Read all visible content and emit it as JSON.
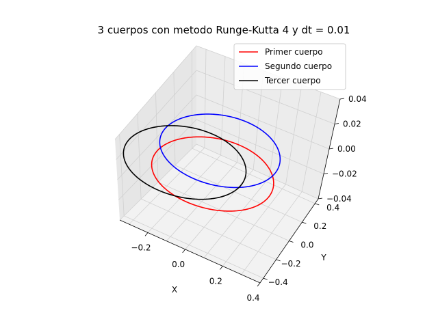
{
  "chart_data": {
    "type": "line",
    "projection": "3d",
    "title": "3 cuerpos con metodo Runge-Kutta 4 y dt = 0.01",
    "xlabel": "X",
    "ylabel": "Y",
    "zlabel": "",
    "xlim": [
      -0.35,
      0.4
    ],
    "ylim": [
      -0.45,
      0.45
    ],
    "zlim": [
      -0.04,
      0.04
    ],
    "x_ticks": [
      "−0.2",
      "0.0",
      "0.2",
      "0.4"
    ],
    "y_ticks": [
      "−0.4",
      "−0.2",
      "0.0",
      "0.2",
      "0.4"
    ],
    "z_ticks": [
      "−0.04",
      "−0.02",
      "0.00",
      "0.02",
      "0.04"
    ],
    "legend_location": "top-right",
    "series": [
      {
        "name": "Primer cuerpo",
        "color": "#ff0000",
        "orbit": {
          "shape": "circle",
          "center_x": 0.0,
          "center_y": -0.1,
          "radius": 0.3,
          "z": 0.0
        }
      },
      {
        "name": "Segundo cuerpo",
        "color": "#0000ff",
        "orbit": {
          "shape": "circle",
          "center_x": -0.05,
          "center_y": 0.1,
          "radius": 0.3,
          "z": 0.0
        }
      },
      {
        "name": "Tercer cuerpo",
        "color": "#000000",
        "orbit": {
          "shape": "circle",
          "center_x": -0.15,
          "center_y": -0.1,
          "radius": 0.3,
          "z": 0.0
        }
      }
    ]
  }
}
